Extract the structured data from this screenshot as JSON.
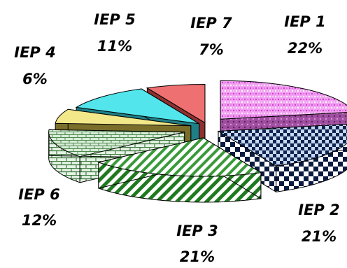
{
  "chart_data": {
    "type": "pie",
    "style": "3d-exploded",
    "categories": [
      "IEP 1",
      "IEP 2",
      "IEP 3",
      "IEP 6",
      "IEP 4",
      "IEP 5",
      "IEP 7"
    ],
    "values": [
      22,
      21,
      21,
      12,
      6,
      11,
      7
    ],
    "value_labels": [
      "22%",
      "21%",
      "21%",
      "12%",
      "6%",
      "11%",
      "7%"
    ],
    "colors": [
      "#ee88ee",
      "#1a2f5a",
      "#3a9a3a",
      "#9ec49a",
      "#f2e88a",
      "#4fe8ea",
      "#ee7070"
    ],
    "patterns": [
      "dotted",
      "checker",
      "diagonal-stripes",
      "brick",
      "solid",
      "solid",
      "solid"
    ],
    "legend": "none"
  }
}
